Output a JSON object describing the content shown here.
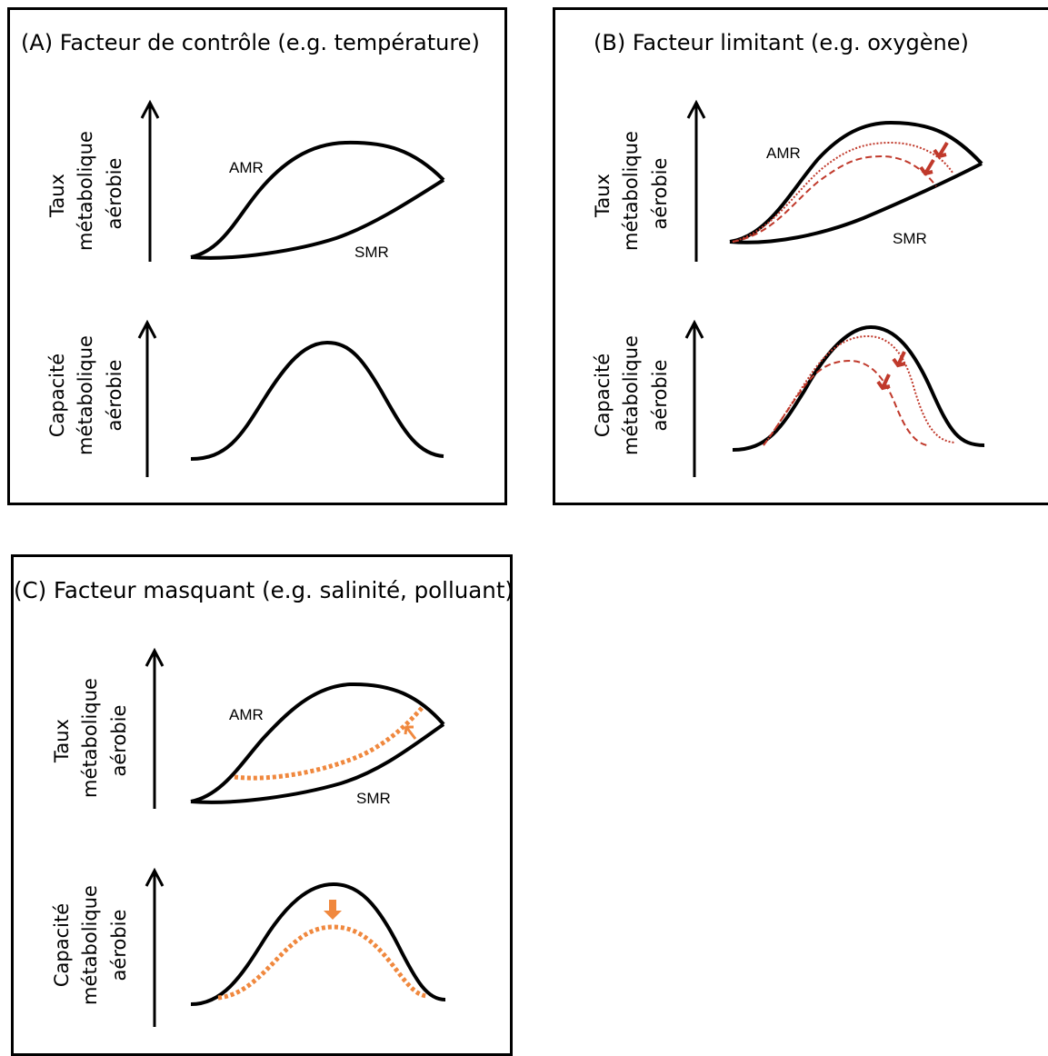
{
  "colors": {
    "axis": "#000000",
    "limiting_red": "#c0392b",
    "masking_orange": "#f0883e"
  },
  "panels": {
    "a": {
      "title": "(A) Facteur de contrôle (e.g. température)",
      "top_ylabel": [
        "Taux",
        "métabolique",
        "aérobie"
      ],
      "bottom_ylabel": [
        "Capacité",
        "métabolique",
        "aérobie"
      ],
      "amr": "AMR",
      "smr": "SMR"
    },
    "b": {
      "title": "(B) Facteur limitant (e.g. oxygène)",
      "top_ylabel": [
        "Taux",
        "métabolique",
        "aérobie"
      ],
      "bottom_ylabel": [
        "Capacité",
        "métabolique",
        "aérobie"
      ],
      "amr": "AMR",
      "smr": "SMR"
    },
    "c": {
      "title": "(C) Facteur masquant (e.g. salinité, polluant)",
      "top_ylabel": [
        "Taux",
        "métabolique",
        "aérobie"
      ],
      "bottom_ylabel": [
        "Capacité",
        "métabolique",
        "aérobie"
      ],
      "amr": "AMR",
      "smr": "SMR"
    }
  }
}
